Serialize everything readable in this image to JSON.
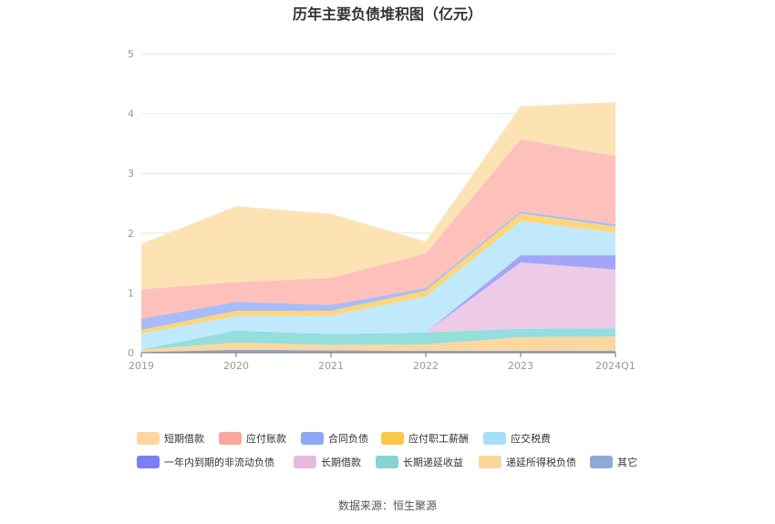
{
  "title": "历年主要负债堆积图（亿元）",
  "source": "数据来源：恒生聚源",
  "chart_data": {
    "type": "area",
    "stacked": true,
    "categories": [
      "2019",
      "2020",
      "2021",
      "2022",
      "2023",
      "2024Q1"
    ],
    "ylim": [
      0,
      5
    ],
    "yticks": [
      "0",
      "1",
      "2",
      "3",
      "4",
      "5"
    ],
    "grid": true,
    "legend_position": "bottom",
    "series": [
      {
        "name": "其它",
        "color": "#8fa8d8",
        "values": [
          0.01,
          0.05,
          0.04,
          0.03,
          0.03,
          0.03
        ]
      },
      {
        "name": "递延所得税负债",
        "color": "#fdd7a0",
        "values": [
          0.04,
          0.12,
          0.09,
          0.11,
          0.23,
          0.24
        ]
      },
      {
        "name": "长期递延收益",
        "color": "#94dedb",
        "values": [
          0.0,
          0.2,
          0.18,
          0.2,
          0.14,
          0.14
        ]
      },
      {
        "name": "长期借款",
        "color": "#edcbe6",
        "values": [
          0.0,
          0.0,
          0.0,
          0.0,
          1.11,
          0.98
        ]
      },
      {
        "name": "一年内到期的非流动负债",
        "color": "#a4a5f9",
        "values": [
          0.0,
          0.0,
          0.0,
          0.0,
          0.12,
          0.24
        ]
      },
      {
        "name": "应交税费",
        "color": "#c0e9fb",
        "values": [
          0.27,
          0.24,
          0.31,
          0.6,
          0.57,
          0.38
        ]
      },
      {
        "name": "应付职工薪酬",
        "color": "#fdd67a",
        "values": [
          0.06,
          0.09,
          0.08,
          0.1,
          0.13,
          0.1
        ]
      },
      {
        "name": "合同负债",
        "color": "#a8bdf7",
        "values": [
          0.19,
          0.15,
          0.1,
          0.04,
          0.03,
          0.04
        ]
      },
      {
        "name": "应付账款",
        "color": "#fdc0ba",
        "values": [
          0.49,
          0.33,
          0.45,
          0.58,
          1.21,
          1.14
        ]
      },
      {
        "name": "短期借款",
        "color": "#fde3b4",
        "values": [
          0.76,
          1.27,
          1.07,
          0.2,
          0.55,
          0.9
        ]
      }
    ],
    "legend": [
      {
        "label": "短期借款",
        "color": "#fcd8a0"
      },
      {
        "label": "应付账款",
        "color": "#fba59d"
      },
      {
        "label": "合同负债",
        "color": "#8ea8f7"
      },
      {
        "label": "应付职工薪酬",
        "color": "#fcc647"
      },
      {
        "label": "应交税费",
        "color": "#a6dff8"
      },
      {
        "label": "一年内到期的非流动负债",
        "color": "#7c7df5"
      },
      {
        "label": "长期借款",
        "color": "#e8b9de"
      },
      {
        "label": "长期递延收益",
        "color": "#85d4d2"
      },
      {
        "label": "递延所得税负债",
        "color": "#fbd69a"
      },
      {
        "label": "其它",
        "color": "#8fa8d8"
      }
    ]
  }
}
